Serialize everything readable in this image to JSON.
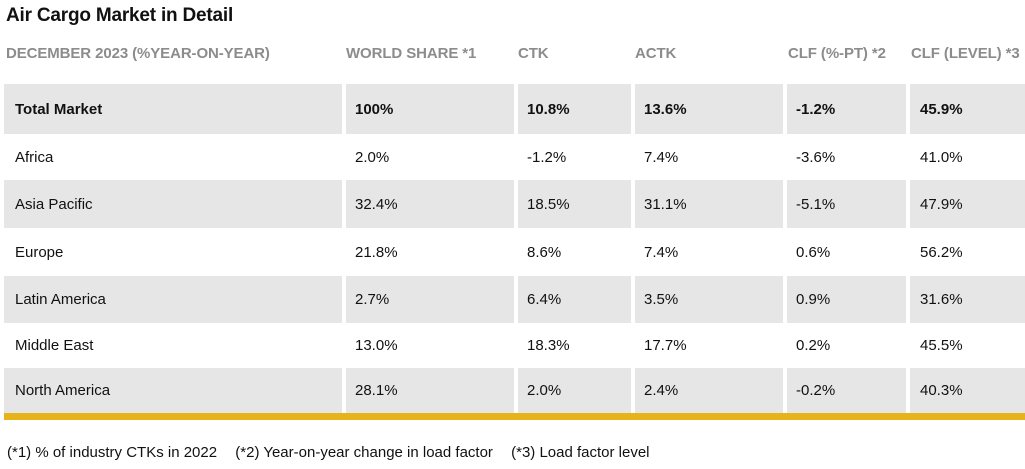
{
  "title": "Air Cargo Market in Detail",
  "columns": [
    "DECEMBER 2023 (%YEAR-ON-YEAR)",
    "WORLD SHARE *1",
    "CTK",
    "ACTK",
    "CLF (%-PT) *2",
    "CLF (LEVEL) *3"
  ],
  "rows": [
    {
      "region": "Total Market",
      "world_share": "100%",
      "ctk": "10.8%",
      "actk": "13.6%",
      "clf_pt": "-1.2%",
      "clf_level": "45.9%"
    },
    {
      "region": "Africa",
      "world_share": "2.0%",
      "ctk": "-1.2%",
      "actk": "7.4%",
      "clf_pt": "-3.6%",
      "clf_level": "41.0%"
    },
    {
      "region": "Asia Pacific",
      "world_share": "32.4%",
      "ctk": "18.5%",
      "actk": "31.1%",
      "clf_pt": "-5.1%",
      "clf_level": "47.9%"
    },
    {
      "region": "Europe",
      "world_share": "21.8%",
      "ctk": "8.6%",
      "actk": "7.4%",
      "clf_pt": "0.6%",
      "clf_level": "56.2%"
    },
    {
      "region": "Latin America",
      "world_share": "2.7%",
      "ctk": "6.4%",
      "actk": "3.5%",
      "clf_pt": "0.9%",
      "clf_level": "31.6%"
    },
    {
      "region": "Middle East",
      "world_share": "13.0%",
      "ctk": "18.3%",
      "actk": "17.7%",
      "clf_pt": "0.2%",
      "clf_level": "45.5%"
    },
    {
      "region": "North America",
      "world_share": "28.1%",
      "ctk": "2.0%",
      "actk": "2.4%",
      "clf_pt": "-0.2%",
      "clf_level": "40.3%"
    }
  ],
  "footnotes": [
    "(*1) % of industry CTKs in 2022",
    "(*2) Year-on-year change in load factor",
    "(*3) Load factor level"
  ],
  "colors": {
    "accent_bar": "#e6b41a",
    "shaded_row": "#e6e6e6",
    "header_text": "#8c8c8c"
  }
}
